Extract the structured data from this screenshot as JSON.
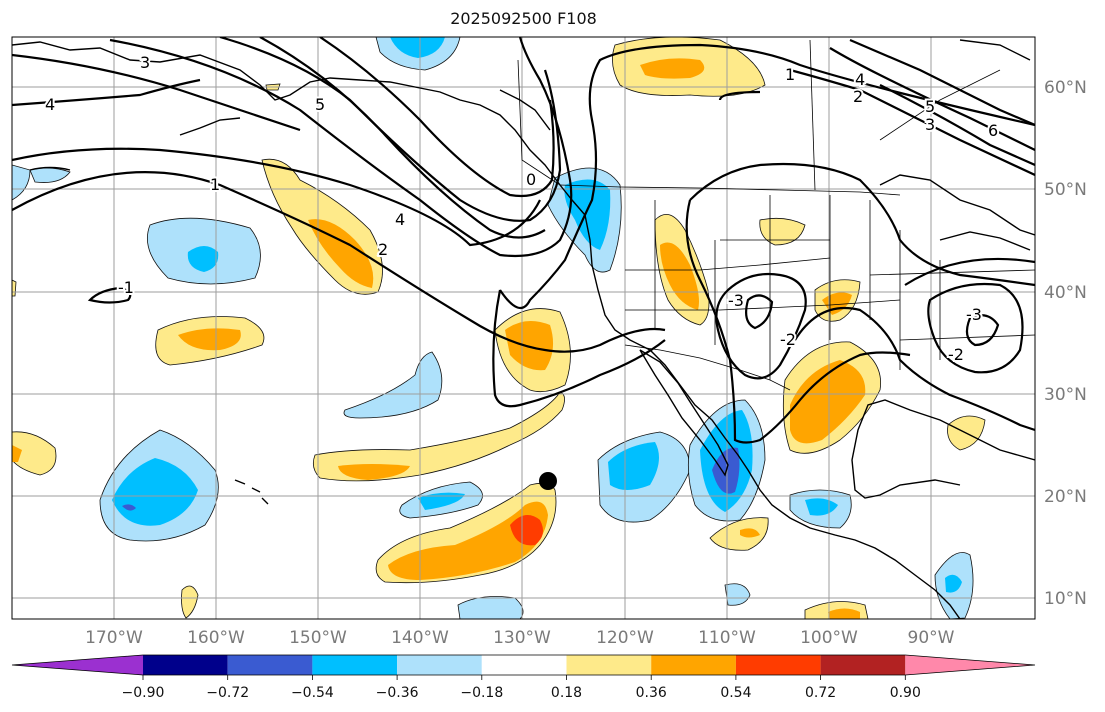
{
  "title": "2025092500 F108",
  "lat_labels": [
    "60°N",
    "50°N",
    "40°N",
    "30°N",
    "20°N",
    "10°N"
  ],
  "lon_labels": [
    "170°W",
    "160°W",
    "150°W",
    "140°W",
    "130°W",
    "120°W",
    "110°W",
    "100°W",
    "90°W"
  ],
  "colorbar": {
    "tick_labels": [
      "−0.90",
      "−0.72",
      "−0.54",
      "−0.36",
      "−0.18",
      "0.18",
      "0.36",
      "0.54",
      "0.72",
      "0.90"
    ],
    "colors": [
      "#9b30d0",
      "#00008b",
      "#3a5bd1",
      "#00bfff",
      "#aee1fb",
      "#ffffff",
      "#feea8a",
      "#ffa500",
      "#ff3c00",
      "#b22222",
      "#ff88aa"
    ]
  },
  "contour_labels": [
    "1",
    "2",
    "3",
    "4",
    "5",
    "6",
    "-1",
    "-2",
    "-3",
    "0"
  ],
  "marker": "storm-position-dot"
}
